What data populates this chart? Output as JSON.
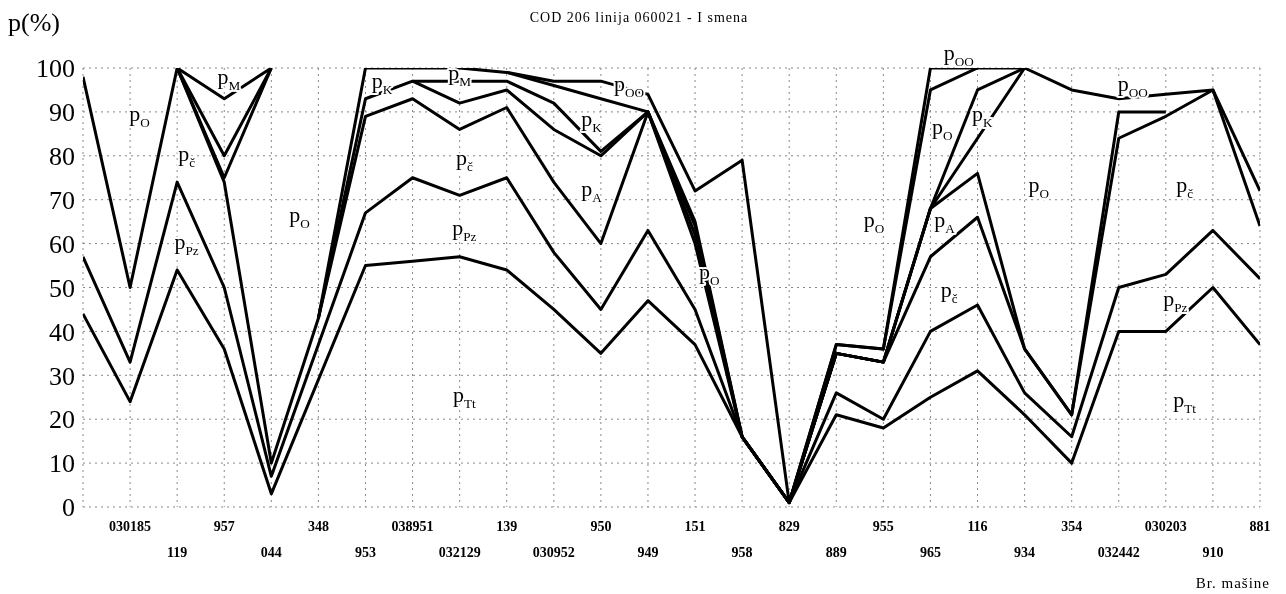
{
  "chart_data": {
    "type": "line",
    "title": "COD 206 linija 060021 - I smena",
    "xlabel": "Br. mašine",
    "ylabel": "p(%)",
    "categories": [
      null,
      "030185",
      "119",
      "957",
      "044",
      "348",
      "953",
      "038951",
      "032129",
      "139",
      "030952",
      "950",
      "949",
      "151",
      "958",
      "829",
      "889",
      "955",
      "965",
      "116",
      "934",
      "354",
      "032442",
      "030203",
      "910",
      "881"
    ],
    "series": [
      {
        "color": "#000000",
        "values": [
          44,
          24,
          54,
          36,
          3,
          null,
          55,
          56,
          57,
          54,
          45,
          35,
          47,
          37,
          16,
          1,
          21,
          18,
          25,
          31,
          21,
          10,
          40,
          40,
          50,
          37
        ]
      },
      {
        "color": "#000000",
        "values": [
          57,
          33,
          74,
          50,
          7,
          null,
          67,
          75,
          71,
          75,
          58,
          45,
          63,
          45,
          16,
          1,
          26,
          20,
          40,
          46,
          26,
          16,
          50,
          53,
          63,
          52
        ]
      },
      {
        "color": "#000000",
        "values": [
          98,
          50,
          100,
          74,
          10,
          43,
          89,
          93,
          86,
          91,
          74,
          60,
          90,
          60,
          16,
          1,
          35,
          33,
          57,
          66,
          36,
          21,
          84,
          89,
          95,
          64
        ]
      },
      {
        "color": "#000000",
        "values": [
          null,
          null,
          null,
          null,
          null,
          43,
          93,
          97,
          92,
          95,
          86,
          80,
          90,
          62,
          16,
          1,
          35,
          33,
          68,
          76,
          36,
          21,
          90,
          90,
          null,
          null
        ]
      },
      {
        "color": "#000000",
        "values": [
          null,
          null,
          null,
          null,
          null,
          null,
          null,
          97,
          97,
          97,
          92,
          81,
          90,
          64,
          16,
          1,
          35,
          33,
          68,
          95,
          100,
          null,
          null,
          null,
          null,
          null
        ]
      },
      {
        "color": "#000000",
        "values": [
          null,
          null,
          null,
          null,
          null,
          null,
          null,
          null,
          null,
          99,
          96,
          93,
          90,
          65,
          16,
          1,
          35,
          33,
          68,
          null,
          100,
          null,
          null,
          null,
          null,
          null
        ]
      },
      {
        "color": "#000000",
        "values": [
          null,
          null,
          null,
          null,
          null,
          43,
          100,
          100,
          100,
          99,
          97,
          97,
          94,
          72,
          79,
          1,
          37,
          36,
          100,
          100,
          100,
          95,
          93,
          94,
          95,
          72
        ]
      },
      {
        "color": "#000000",
        "values": [
          null,
          null,
          null,
          null,
          null,
          null,
          null,
          null,
          null,
          null,
          null,
          null,
          null,
          null,
          null,
          1,
          37,
          36,
          95,
          100,
          null,
          null,
          null,
          null,
          null,
          null
        ]
      },
      {
        "color": "#000000",
        "values": [
          null,
          null,
          100,
          93,
          100,
          null,
          null,
          null,
          null,
          null,
          null,
          null,
          null,
          null,
          null,
          null,
          null,
          null,
          null,
          null,
          null,
          null,
          null,
          null,
          null,
          null
        ]
      },
      {
        "color": "#000000",
        "values": [
          null,
          null,
          100,
          80,
          100,
          null,
          null,
          null,
          null,
          null,
          null,
          null,
          null,
          null,
          null,
          null,
          null,
          null,
          null,
          null,
          null,
          null,
          null,
          null,
          null,
          null
        ]
      },
      {
        "color": "#000000",
        "values": [
          null,
          null,
          100,
          75,
          100,
          null,
          null,
          null,
          null,
          null,
          null,
          null,
          null,
          null,
          null,
          null,
          null,
          null,
          null,
          null,
          null,
          null,
          null,
          null,
          null,
          null
        ]
      }
    ],
    "ylim": [
      0,
      100
    ],
    "yticks": [
      0,
      10,
      20,
      30,
      40,
      50,
      60,
      70,
      80,
      90,
      100
    ],
    "grid": true,
    "marker": "none",
    "line_style": "solid",
    "annotations": [
      "p$_{O}$",
      "p$_{M}$",
      "p$_{č}$",
      "p$_{Pz}$",
      "p$_{O}$",
      "p$_{K}$",
      "p$_{M}$",
      "p$_{č}$",
      "p$_{Pz}$",
      "p$_{Tt}$",
      "p$_{OO}$",
      "p$_{K}$",
      "p$_{A}$",
      "p$_{O}$",
      "p$_{O}$",
      "p$_{OO}$",
      "p$_{O}$",
      "p$_{K}$",
      "p$_{A}$",
      "p$_{č}$",
      "p$_{O}$",
      "p$_{OO}$",
      "p$_{č}$",
      "p$_{Pz}$",
      "p$_{Tt}$"
    ]
  }
}
